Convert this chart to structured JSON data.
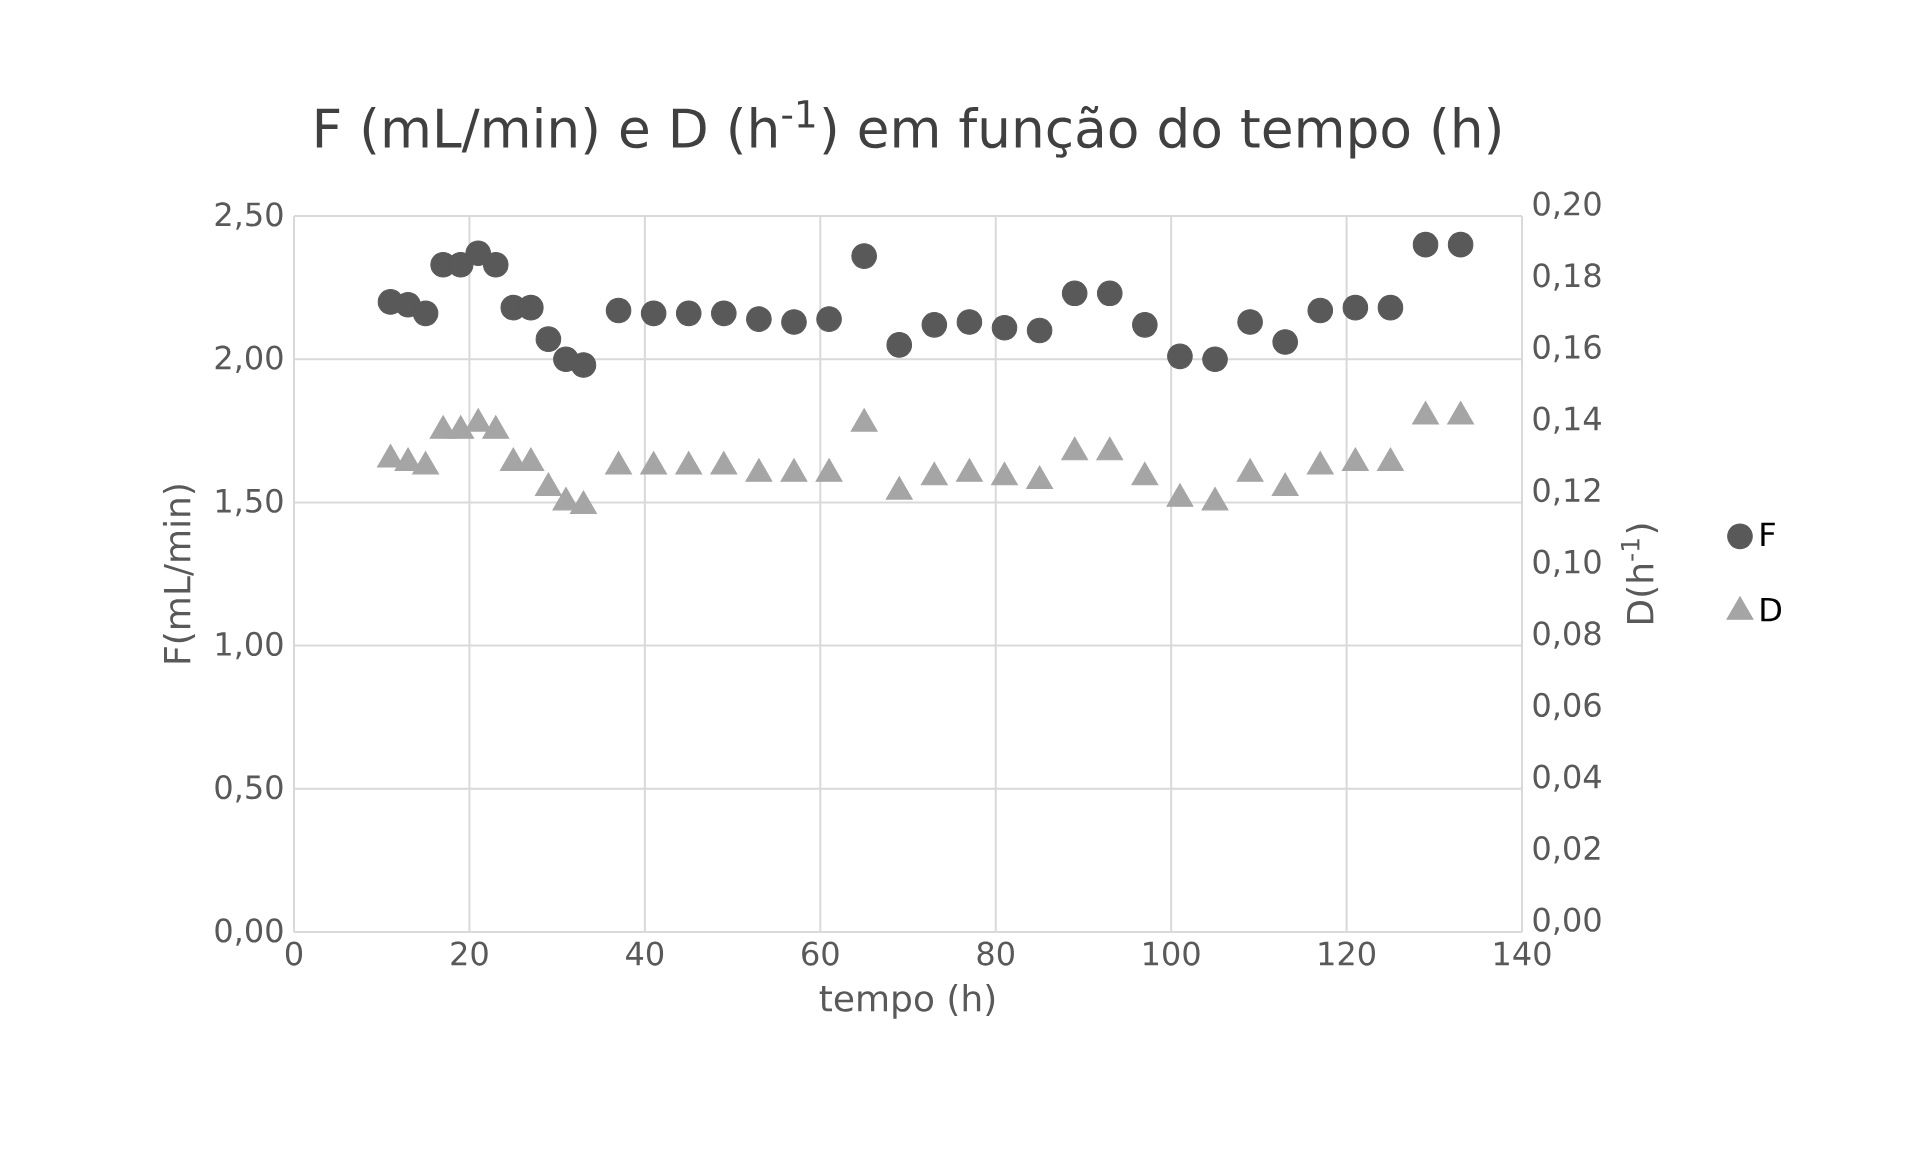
{
  "chart_data": {
    "type": "scatter",
    "title": "F (mL/min) e D (h$^{-1}$) em função do tempo (h)",
    "xlabel": "tempo (h)",
    "ylabel": "F(mL/min)",
    "y2label": "D(h$^{-1}$)",
    "x": [
      11,
      13,
      15,
      17,
      19,
      21,
      23,
      25,
      27,
      29,
      31,
      33,
      37,
      41,
      45,
      49,
      53,
      57,
      61,
      65,
      69,
      73,
      77,
      81,
      85,
      89,
      93,
      97,
      101,
      105,
      109,
      113,
      117,
      121,
      125,
      129,
      133
    ],
    "series": [
      {
        "name": "F",
        "color": "#595959",
        "marker": "circle",
        "values": [
          2.2,
          2.19,
          2.16,
          2.33,
          2.33,
          2.37,
          2.33,
          2.18,
          2.18,
          2.07,
          2.0,
          1.98,
          2.17,
          2.16,
          2.16,
          2.16,
          2.14,
          2.13,
          2.14,
          2.36,
          2.05,
          2.12,
          2.13,
          2.11,
          2.1,
          2.23,
          2.23,
          2.12,
          2.01,
          2.0,
          2.13,
          2.06,
          2.17,
          2.18,
          2.18,
          2.4,
          2.4
        ]
      },
      {
        "name": "D",
        "color": "#a5a5a5",
        "marker": "triangle",
        "axis": "y2",
        "values": [
          0.132,
          0.131,
          0.13,
          0.14,
          0.14,
          0.142,
          0.14,
          0.131,
          0.131,
          0.124,
          0.12,
          0.119,
          0.13,
          0.13,
          0.13,
          0.13,
          0.128,
          0.128,
          0.128,
          0.142,
          0.123,
          0.127,
          0.128,
          0.127,
          0.126,
          0.134,
          0.134,
          0.127,
          0.121,
          0.12,
          0.128,
          0.124,
          0.13,
          0.131,
          0.131,
          0.144,
          0.144
        ]
      }
    ],
    "xlim": [
      0,
      140
    ],
    "xticks": [
      0,
      20,
      40,
      60,
      80,
      100,
      120,
      140
    ],
    "ylim": [
      0,
      2.5
    ],
    "yticks": [
      {
        "value": 0,
        "label": "0,00"
      },
      {
        "value": 0.5,
        "label": "0,50"
      },
      {
        "value": 1,
        "label": "1,00"
      },
      {
        "value": 1.5,
        "label": "1,50"
      },
      {
        "value": 2,
        "label": "2,00"
      },
      {
        "value": 2.5,
        "label": "2,50"
      }
    ],
    "y2lim": [
      0,
      0.2
    ],
    "y2ticks": [
      {
        "value": 0,
        "label": "0,00"
      },
      {
        "value": 0.02,
        "label": "0,02"
      },
      {
        "value": 0.04,
        "label": "0,04"
      },
      {
        "value": 0.06,
        "label": "0,06"
      },
      {
        "value": 0.08,
        "label": "0,08"
      },
      {
        "value": 0.1,
        "label": "0,10"
      },
      {
        "value": 0.12,
        "label": "0,12"
      },
      {
        "value": 0.14,
        "label": "0,14"
      },
      {
        "value": 0.16,
        "label": "0,16"
      },
      {
        "value": 0.18,
        "label": "0,18"
      },
      {
        "value": 0.2,
        "label": "0,20"
      }
    ],
    "grid": true,
    "legend": "right"
  }
}
